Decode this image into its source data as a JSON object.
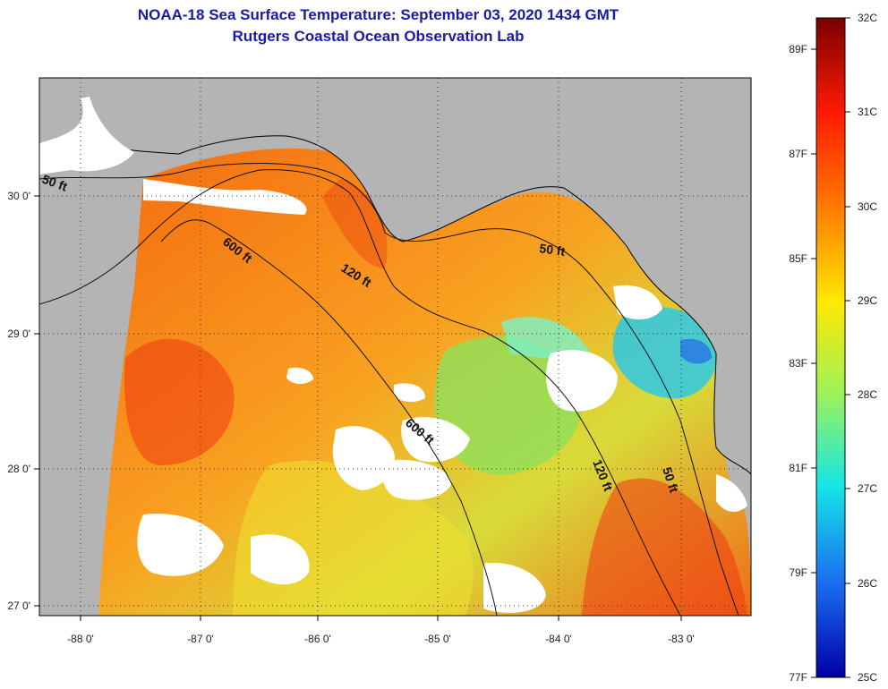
{
  "header": {
    "title": "NOAA-18 Sea Surface Temperature:  September 03, 2020 1434 GMT",
    "subtitle": "Rutgers Coastal Ocean Observation Lab"
  },
  "map": {
    "lon_ticks": [
      "-88 0'",
      "-87 0'",
      "-86 0'",
      "-85 0'",
      "-84 0'",
      "-83 0'"
    ],
    "lat_ticks": [
      "30 0'",
      "29 0'",
      "28 0'",
      "27 0'"
    ],
    "contours": [
      {
        "label": "50 ft"
      },
      {
        "label": "600 ft"
      },
      {
        "label": "120 ft"
      },
      {
        "label": "50 ft"
      },
      {
        "label": "600 ft"
      },
      {
        "label": "120 ft"
      },
      {
        "label": "50 ft"
      }
    ],
    "colors": {
      "land": "#b4b4b4",
      "cloud": "#ffffff",
      "contour": "#111111"
    }
  },
  "colorbar": {
    "celsius": [
      "32C",
      "31C",
      "30C",
      "29C",
      "28C",
      "27C",
      "26C",
      "25C"
    ],
    "fahrenheit": [
      "89F",
      "87F",
      "85F",
      "83F",
      "81F",
      "79F",
      "77F"
    ],
    "stops": [
      "#7a0000",
      "#ff1a00",
      "#ff7a00",
      "#ffe800",
      "#9ef25a",
      "#14e6e6",
      "#1a6ef0",
      "#0000a6"
    ]
  }
}
